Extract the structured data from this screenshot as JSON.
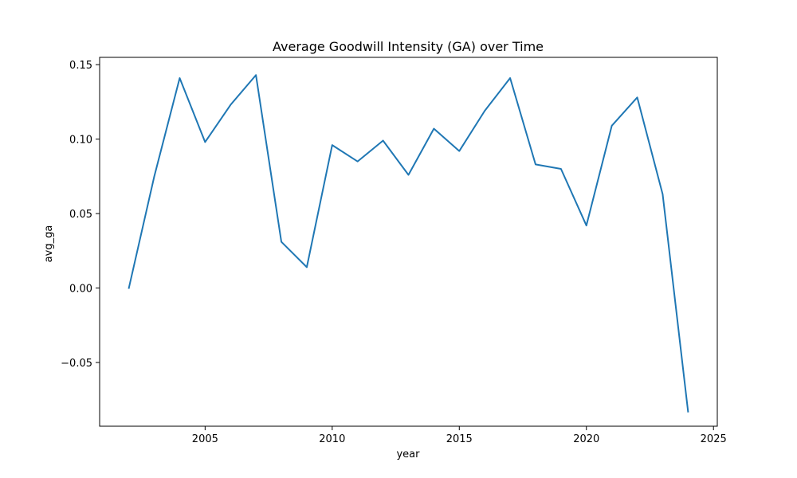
{
  "chart_data": {
    "type": "line",
    "title": "Average Goodwill Intensity (GA) over Time",
    "xlabel": "year",
    "ylabel": "avg_ga",
    "xlim": [
      2000.85,
      2025.15
    ],
    "ylim": [
      -0.0928,
      0.1549
    ],
    "x_ticks": [
      2005,
      2010,
      2015,
      2020,
      2025
    ],
    "y_ticks": [
      -0.05,
      0.0,
      0.05,
      0.1,
      0.15
    ],
    "x_tick_labels": [
      "2005",
      "2010",
      "2015",
      "2020",
      "2025"
    ],
    "y_tick_labels": [
      "−0.05",
      "0.00",
      "0.05",
      "0.10",
      "0.15"
    ],
    "grid": false,
    "series": [
      {
        "color": "#1f77b4",
        "x": [
          2002,
          2003,
          2004,
          2005,
          2006,
          2007,
          2008,
          2009,
          2010,
          2011,
          2012,
          2013,
          2014,
          2015,
          2016,
          2017,
          2018,
          2019,
          2020,
          2021,
          2022,
          2023,
          2024
        ],
        "y": [
          0.0,
          0.075,
          0.141,
          0.098,
          0.123,
          0.143,
          0.031,
          0.014,
          0.096,
          0.085,
          0.099,
          0.076,
          0.107,
          0.092,
          0.119,
          0.141,
          0.083,
          0.08,
          0.042,
          0.109,
          0.128,
          0.063,
          -0.083
        ]
      }
    ]
  }
}
